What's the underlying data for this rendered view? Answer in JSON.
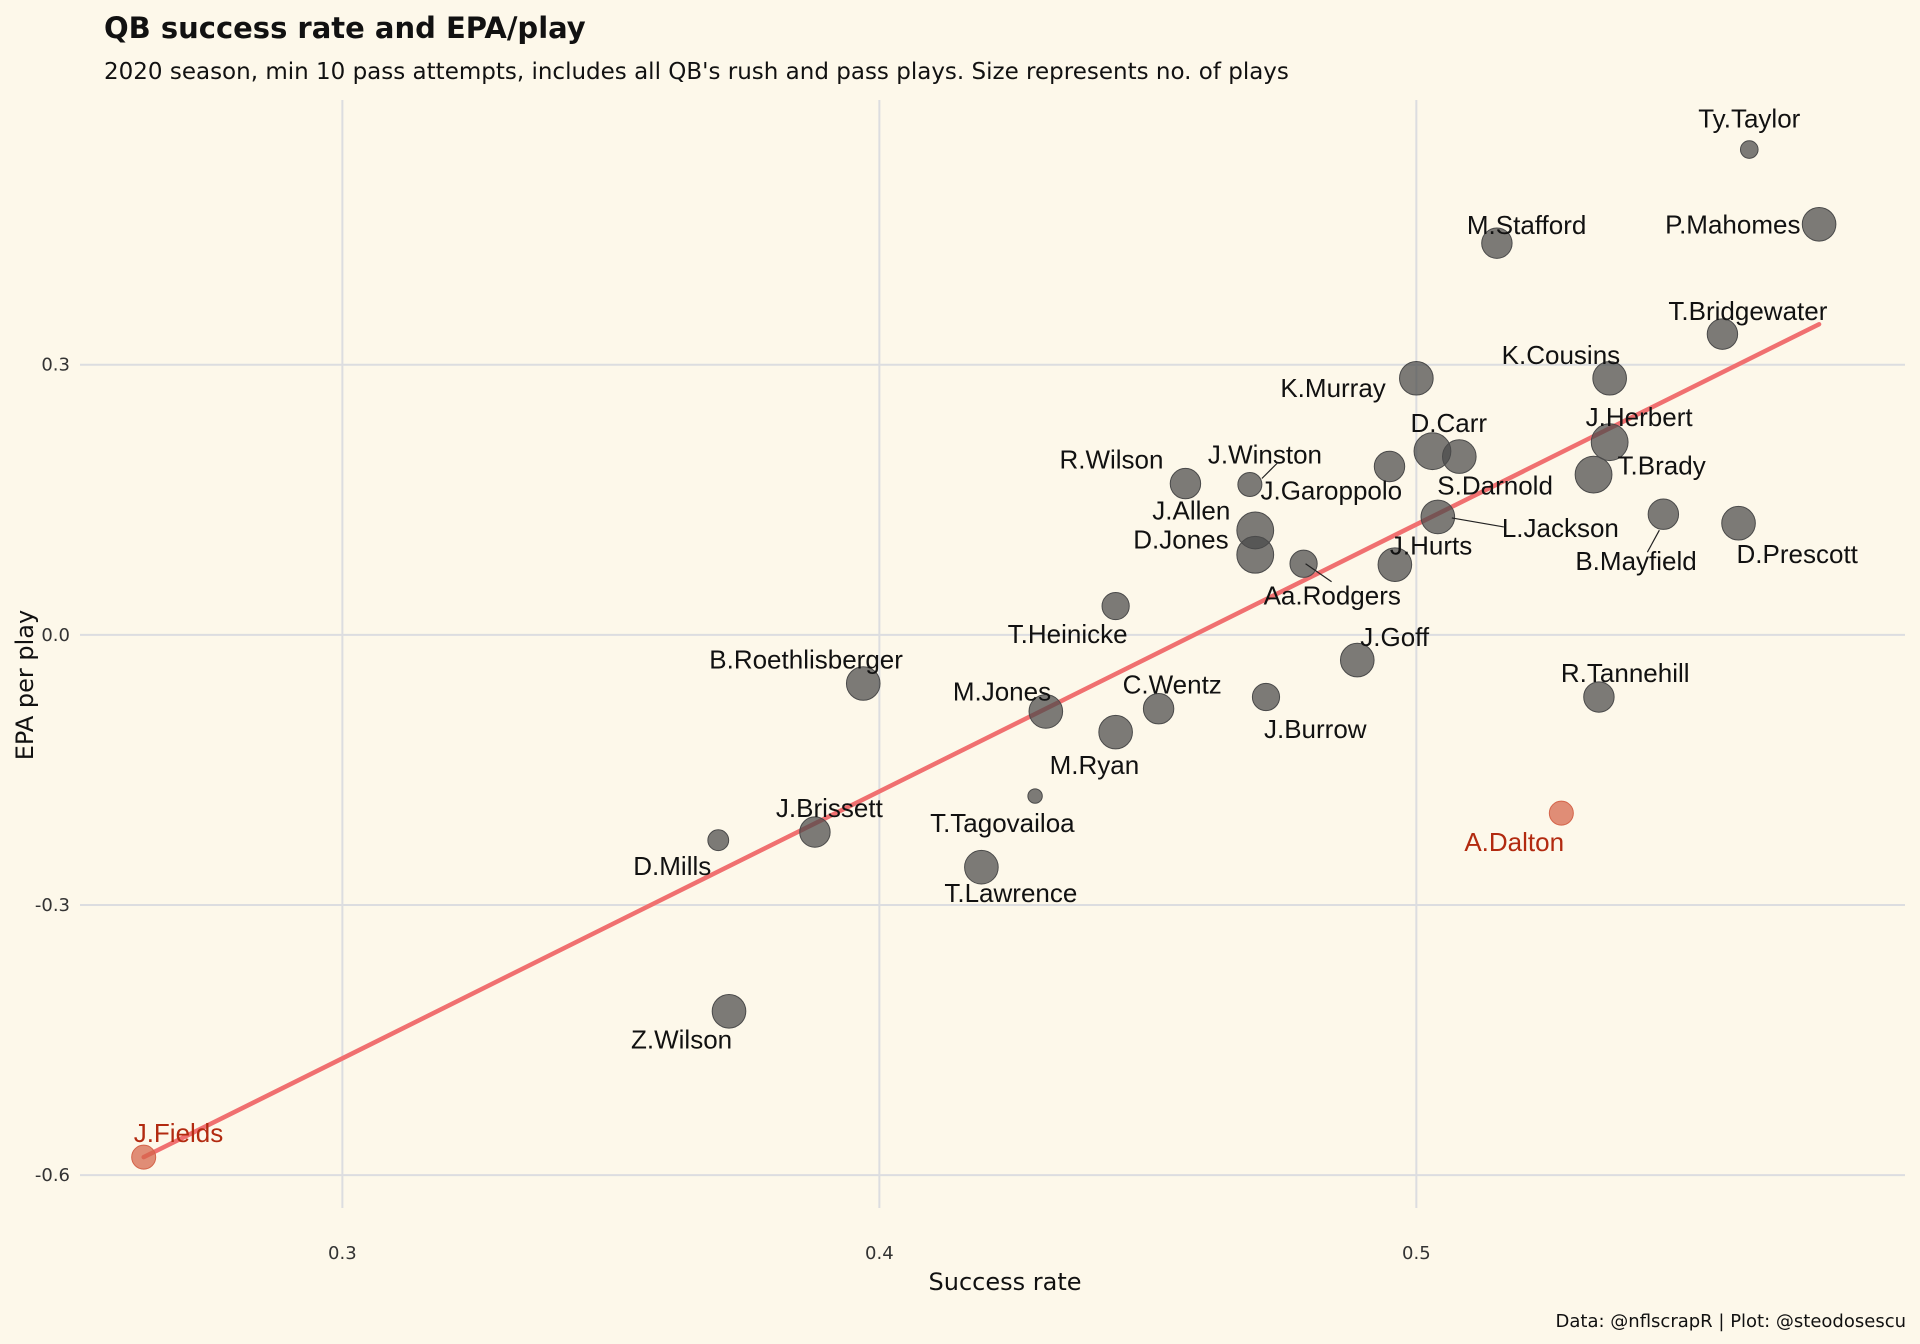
{
  "chart_data": {
    "type": "scatter",
    "title": "QB success rate and EPA/play",
    "subtitle": "2020 season, min 10 pass attempts, includes all QB's rush and pass plays. Size represents no. of plays",
    "xlabel": "Success rate",
    "ylabel": "EPA per play",
    "caption": "Data: @nflscrapR | Plot: @steodosescu",
    "xlim": [
      0.253,
      0.591
    ],
    "ylim": [
      -0.672,
      0.594
    ],
    "xticks": [
      0.3,
      0.4,
      0.5
    ],
    "xtick_labels": [
      "0.3",
      "0.4",
      "0.5"
    ],
    "yticks": [
      -0.6,
      -0.3,
      0.0,
      0.3
    ],
    "ytick_labels": [
      "-0.6",
      "-0.3",
      "0.0",
      "0.3"
    ],
    "grid": true,
    "point_color": "#4a4a4a",
    "highlight_color": "#d4644a",
    "highlight_label_color": "#b22a10",
    "trend_line": {
      "color": "#f07070",
      "x": [
        0.263,
        0.575
      ],
      "y": [
        -0.58,
        0.345
      ]
    },
    "points": [
      {
        "name": "Ty.Taylor",
        "x": 0.562,
        "y": 0.539,
        "size": 3
      },
      {
        "name": "P.Mahomes",
        "x": 0.575,
        "y": 0.456,
        "size": 8
      },
      {
        "name": "M.Stafford",
        "x": 0.515,
        "y": 0.435,
        "size": 7
      },
      {
        "name": "T.Bridgewater",
        "x": 0.557,
        "y": 0.334,
        "size": 7
      },
      {
        "name": "K.Cousins",
        "x": 0.536,
        "y": 0.285,
        "size": 8
      },
      {
        "name": "K.Murray",
        "x": 0.5,
        "y": 0.285,
        "size": 8
      },
      {
        "name": "J.Herbert",
        "x": 0.536,
        "y": 0.214,
        "size": 9
      },
      {
        "name": "D.Carr",
        "x": 0.503,
        "y": 0.204,
        "size": 9
      },
      {
        "name": "S.Darnold",
        "x": 0.508,
        "y": 0.198,
        "size": 8
      },
      {
        "name": "T.Brady",
        "x": 0.533,
        "y": 0.178,
        "size": 9
      },
      {
        "name": "J.Winston",
        "x": 0.469,
        "y": 0.167,
        "size": 5
      },
      {
        "name": "R.Wilson",
        "x": 0.457,
        "y": 0.168,
        "size": 7
      },
      {
        "name": "J.Garoppolo",
        "x": 0.495,
        "y": 0.187,
        "size": 7
      },
      {
        "name": "L.Jackson",
        "x": 0.504,
        "y": 0.131,
        "size": 8
      },
      {
        "name": "B.Mayfield",
        "x": 0.546,
        "y": 0.134,
        "size": 7
      },
      {
        "name": "D.Prescott",
        "x": 0.56,
        "y": 0.124,
        "size": 8
      },
      {
        "name": "J.Allen",
        "x": 0.47,
        "y": 0.116,
        "size": 9
      },
      {
        "name": "J.Hurts",
        "x": 0.496,
        "y": 0.078,
        "size": 8
      },
      {
        "name": "D.Jones",
        "x": 0.47,
        "y": 0.089,
        "size": 9
      },
      {
        "name": "Aa.Rodgers",
        "x": 0.479,
        "y": 0.079,
        "size": 6
      },
      {
        "name": "T.Heinicke",
        "x": 0.444,
        "y": 0.032,
        "size": 6
      },
      {
        "name": "J.Goff",
        "x": 0.489,
        "y": -0.028,
        "size": 8
      },
      {
        "name": "B.Roethlisberger",
        "x": 0.397,
        "y": -0.054,
        "size": 8
      },
      {
        "name": "R.Tannehill",
        "x": 0.534,
        "y": -0.069,
        "size": 7
      },
      {
        "name": "J.Burrow",
        "x": 0.472,
        "y": -0.069,
        "size": 6
      },
      {
        "name": "C.Wentz",
        "x": 0.452,
        "y": -0.082,
        "size": 7
      },
      {
        "name": "M.Jones",
        "x": 0.431,
        "y": -0.085,
        "size": 8
      },
      {
        "name": "M.Ryan",
        "x": 0.444,
        "y": -0.108,
        "size": 8
      },
      {
        "name": "T.Tagovailoa",
        "x": 0.429,
        "y": -0.179,
        "size": 2
      },
      {
        "name": "A.Dalton",
        "x": 0.527,
        "y": -0.198,
        "size": 5,
        "highlight": true
      },
      {
        "name": "J.Brissett",
        "x": 0.388,
        "y": -0.219,
        "size": 7
      },
      {
        "name": "D.Mills",
        "x": 0.37,
        "y": -0.228,
        "size": 4
      },
      {
        "name": "T.Lawrence",
        "x": 0.419,
        "y": -0.258,
        "size": 8
      },
      {
        "name": "Z.Wilson",
        "x": 0.372,
        "y": -0.418,
        "size": 8
      },
      {
        "name": "J.Fields",
        "x": 0.263,
        "y": -0.58,
        "size": 5,
        "highlight": true
      }
    ]
  }
}
